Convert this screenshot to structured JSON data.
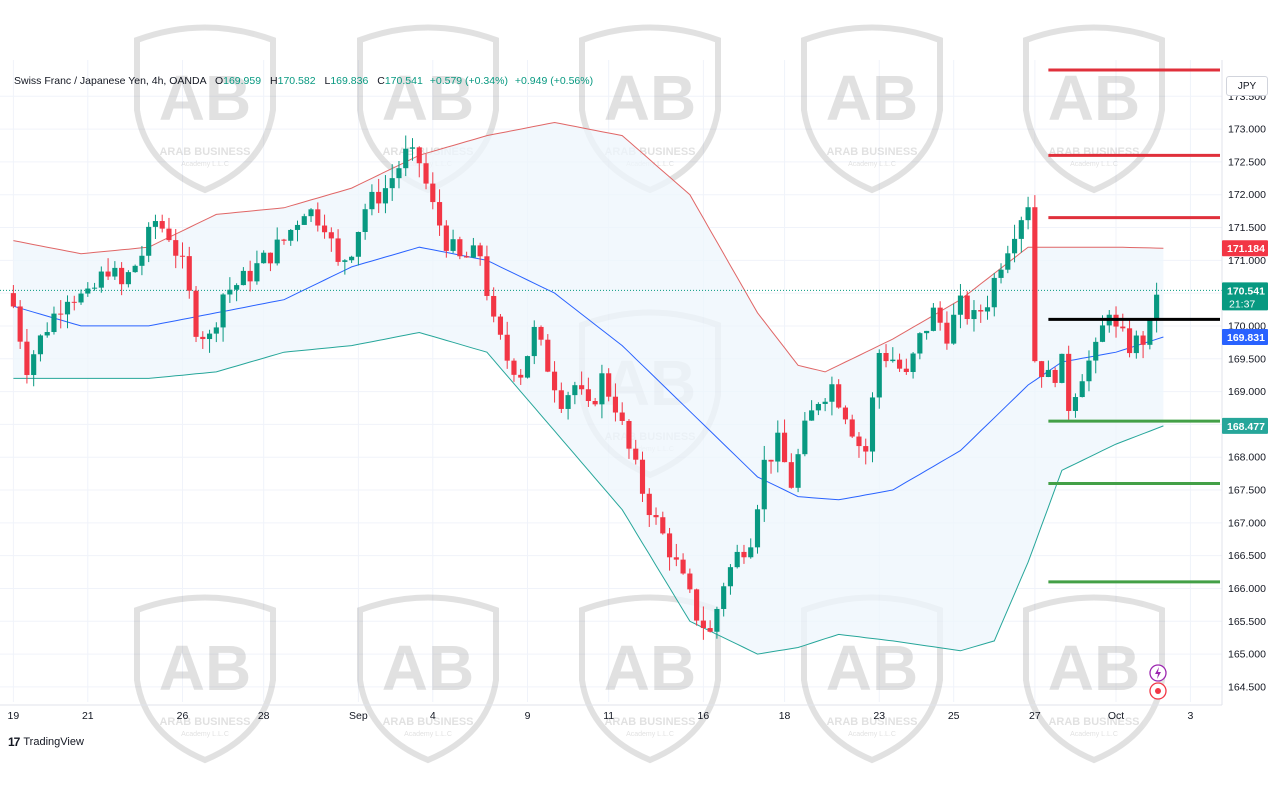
{
  "legend": {
    "symbol": "Swiss Franc / Japanese Yen, 4h, OANDA",
    "o_label": "O",
    "o": "169.959",
    "h_label": "H",
    "h": "170.582",
    "l_label": "L",
    "l": "169.836",
    "c_label": "C",
    "c": "170.541",
    "change": "+0.579 (+0.34%)",
    "change2": "+0.949 (+0.56%)"
  },
  "currency": "JPY",
  "brand": "TradingView",
  "watermark": {
    "line1": "ARAB BUSINESS",
    "line2": "Academy L.L.C"
  },
  "price_labels": {
    "upper_band": "171.184",
    "last_price": "170.541",
    "countdown": "21:37",
    "middle_band": "169.831",
    "support": "168.477"
  },
  "colors": {
    "up": "#089981",
    "down": "#f23645",
    "upper_band": "#e06666",
    "lower_band": "#26a69a",
    "middle_band": "#2962ff",
    "band_fill": "#eef5fc",
    "resistance": "#e0303b",
    "support": "#43a047",
    "pivot": "#000000"
  },
  "chart_data": {
    "type": "candlestick",
    "title": "",
    "y_axis": {
      "min": 164.3,
      "max": 173.9,
      "ticks": [
        173.5,
        173.0,
        172.5,
        172.0,
        171.5,
        171.0,
        170.5,
        170.0,
        169.5,
        169.0,
        168.5,
        168.0,
        167.5,
        167.0,
        166.5,
        166.0,
        165.5,
        165.0,
        164.5
      ],
      "tick_labels": [
        "173.500",
        "173.000",
        "172.500",
        "172.000",
        "171.500",
        "171.000",
        "170.500",
        "170.000",
        "169.500",
        "169.000",
        "168.500",
        "168.000",
        "167.500",
        "167.000",
        "166.500",
        "166.000",
        "165.500",
        "165.000",
        "164.500"
      ],
      "position": "right"
    },
    "x_axis": {
      "tick_labels": [
        "19",
        "21",
        "26",
        "28",
        "Sep",
        "4",
        "9",
        "11",
        "16",
        "18",
        "23",
        "25",
        "27",
        "Oct",
        "3"
      ],
      "tick_bar_index": [
        0,
        11,
        25,
        37,
        51,
        62,
        76,
        88,
        102,
        114,
        128,
        139,
        151,
        163,
        174
      ]
    },
    "grid": true,
    "bollinger_bands": {
      "upper": [
        [
          0,
          171.3
        ],
        [
          10,
          171.1
        ],
        [
          20,
          171.2
        ],
        [
          30,
          171.7
        ],
        [
          40,
          171.8
        ],
        [
          50,
          172.1
        ],
        [
          60,
          172.6
        ],
        [
          70,
          172.9
        ],
        [
          80,
          173.1
        ],
        [
          90,
          172.9
        ],
        [
          100,
          172.0
        ],
        [
          110,
          170.2
        ],
        [
          116,
          169.4
        ],
        [
          120,
          169.3
        ],
        [
          130,
          169.8
        ],
        [
          140,
          170.4
        ],
        [
          150,
          171.2
        ],
        [
          155,
          171.2
        ],
        [
          163,
          171.2
        ],
        [
          170,
          171.184
        ]
      ],
      "middle": [
        [
          0,
          170.3
        ],
        [
          10,
          170.0
        ],
        [
          20,
          170.0
        ],
        [
          30,
          170.2
        ],
        [
          40,
          170.4
        ],
        [
          50,
          170.9
        ],
        [
          60,
          171.2
        ],
        [
          70,
          171.0
        ],
        [
          80,
          170.5
        ],
        [
          90,
          169.7
        ],
        [
          100,
          168.7
        ],
        [
          110,
          167.7
        ],
        [
          116,
          167.4
        ],
        [
          122,
          167.35
        ],
        [
          130,
          167.5
        ],
        [
          140,
          168.1
        ],
        [
          150,
          169.1
        ],
        [
          155,
          169.45
        ],
        [
          163,
          169.6
        ],
        [
          170,
          169.831
        ]
      ],
      "lower": [
        [
          0,
          169.2
        ],
        [
          10,
          169.2
        ],
        [
          20,
          169.2
        ],
        [
          30,
          169.3
        ],
        [
          40,
          169.6
        ],
        [
          50,
          169.7
        ],
        [
          60,
          169.9
        ],
        [
          70,
          169.6
        ],
        [
          80,
          168.4
        ],
        [
          90,
          167.2
        ],
        [
          100,
          165.5
        ],
        [
          110,
          165.0
        ],
        [
          116,
          165.1
        ],
        [
          122,
          165.3
        ],
        [
          130,
          165.2
        ],
        [
          140,
          165.05
        ],
        [
          145,
          165.2
        ],
        [
          150,
          166.4
        ],
        [
          155,
          167.8
        ],
        [
          163,
          168.2
        ],
        [
          170,
          168.477
        ]
      ]
    },
    "levels": [
      {
        "value": 173.9,
        "color": "resistance"
      },
      {
        "value": 172.6,
        "color": "resistance"
      },
      {
        "value": 171.65,
        "color": "resistance"
      },
      {
        "value": 170.1,
        "color": "pivot"
      },
      {
        "value": 168.55,
        "color": "support"
      },
      {
        "value": 167.6,
        "color": "support"
      },
      {
        "value": 166.1,
        "color": "support"
      }
    ],
    "levels_start_bar": 153,
    "candle_path": [
      [
        0,
        170.3
      ],
      [
        2,
        169.4
      ],
      [
        5,
        170.0
      ],
      [
        8,
        170.5
      ],
      [
        11,
        170.4
      ],
      [
        14,
        170.9
      ],
      [
        16,
        170.6
      ],
      [
        19,
        171.1
      ],
      [
        21,
        171.6
      ],
      [
        23,
        171.4
      ],
      [
        25,
        170.9
      ],
      [
        27,
        170.0
      ],
      [
        29,
        169.8
      ],
      [
        31,
        170.5
      ],
      [
        34,
        170.7
      ],
      [
        37,
        171.0
      ],
      [
        40,
        171.3
      ],
      [
        43,
        171.8
      ],
      [
        46,
        171.6
      ],
      [
        48,
        170.9
      ],
      [
        50,
        171.2
      ],
      [
        52,
        171.8
      ],
      [
        55,
        172.1
      ],
      [
        58,
        172.6
      ],
      [
        60,
        172.5
      ],
      [
        62,
        171.8
      ],
      [
        64,
        171.3
      ],
      [
        66,
        171.0
      ],
      [
        69,
        171.1
      ],
      [
        71,
        170.0
      ],
      [
        73,
        169.5
      ],
      [
        75,
        169.3
      ],
      [
        77,
        169.9
      ],
      [
        79,
        169.4
      ],
      [
        81,
        168.9
      ],
      [
        83,
        169.1
      ],
      [
        85,
        168.7
      ],
      [
        87,
        169.2
      ],
      [
        89,
        168.8
      ],
      [
        91,
        168.1
      ],
      [
        93,
        167.5
      ],
      [
        95,
        167.0
      ],
      [
        97,
        166.6
      ],
      [
        99,
        166.1
      ],
      [
        101,
        165.6
      ],
      [
        103,
        165.3
      ],
      [
        105,
        166.1
      ],
      [
        107,
        166.5
      ],
      [
        109,
        166.8
      ],
      [
        111,
        167.9
      ],
      [
        113,
        168.2
      ],
      [
        115,
        167.6
      ],
      [
        117,
        168.4
      ],
      [
        119,
        168.9
      ],
      [
        121,
        169.1
      ],
      [
        123,
        168.7
      ],
      [
        125,
        168.2
      ],
      [
        126,
        168.1
      ],
      [
        128,
        169.6
      ],
      [
        130,
        169.5
      ],
      [
        132,
        169.2
      ],
      [
        134,
        169.8
      ],
      [
        136,
        170.2
      ],
      [
        138,
        169.9
      ],
      [
        140,
        170.3
      ],
      [
        142,
        170.1
      ],
      [
        144,
        170.4
      ],
      [
        146,
        171.0
      ],
      [
        148,
        171.5
      ],
      [
        150,
        171.9
      ],
      [
        151,
        169.5
      ],
      [
        153,
        169.2
      ],
      [
        155,
        169.4
      ],
      [
        156,
        168.8
      ],
      [
        158,
        169.3
      ],
      [
        160,
        169.6
      ],
      [
        162,
        170.3
      ],
      [
        163,
        169.9
      ],
      [
        165,
        169.7
      ],
      [
        167,
        169.8
      ],
      [
        168,
        169.959
      ],
      [
        169,
        170.541
      ]
    ]
  }
}
